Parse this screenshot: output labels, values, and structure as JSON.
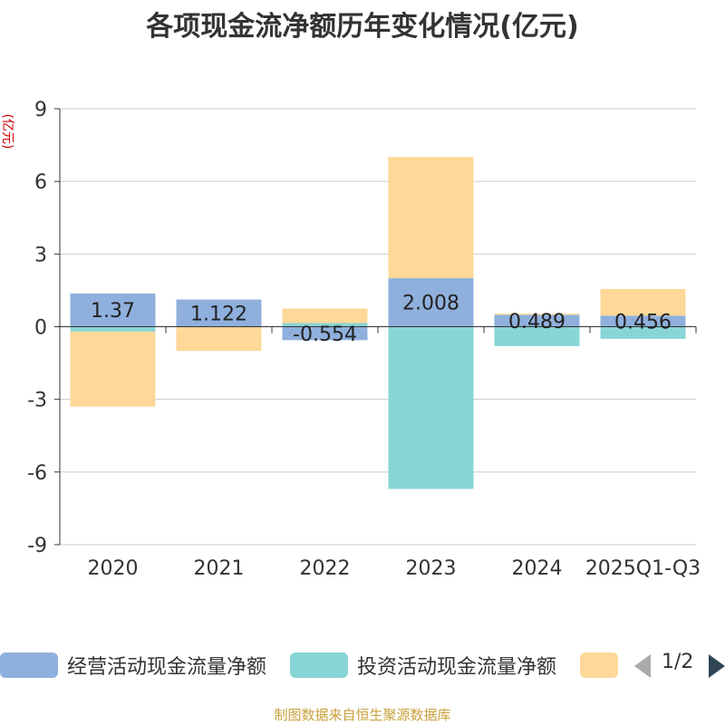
{
  "chart_data": {
    "type": "bar",
    "stacked": true,
    "title": "各项现金流净额历年变化情况(亿元)",
    "ylabel": "(亿元)",
    "xlabel": "",
    "ylim": [
      -9,
      9
    ],
    "yticks": [
      -9,
      -6,
      -3,
      0,
      3,
      6,
      9
    ],
    "grid": true,
    "categories": [
      "2020",
      "2021",
      "2022",
      "2023",
      "2024",
      "2025Q1-Q3"
    ],
    "series": [
      {
        "name": "经营活动现金流量净额",
        "color": "#8fb0dd",
        "values": [
          1.37,
          1.122,
          -0.554,
          2.008,
          0.489,
          0.456
        ]
      },
      {
        "name": "投资活动现金流量净额",
        "color": "#88d5d7",
        "values": [
          -0.2,
          0.0,
          0.15,
          -6.7,
          -0.8,
          -0.5
        ]
      },
      {
        "name": "",
        "color": "#fdd898",
        "values": [
          -3.1,
          -1.0,
          0.6,
          5.0,
          0.05,
          1.1
        ]
      }
    ],
    "data_labels": [
      "1.37",
      "1.122",
      "-0.554",
      "2.008",
      "0.489",
      "0.456"
    ],
    "legend_position": "bottom"
  },
  "legend": {
    "page_text": "1/2"
  },
  "source_note": "制图数据来自恒生聚源数据库"
}
